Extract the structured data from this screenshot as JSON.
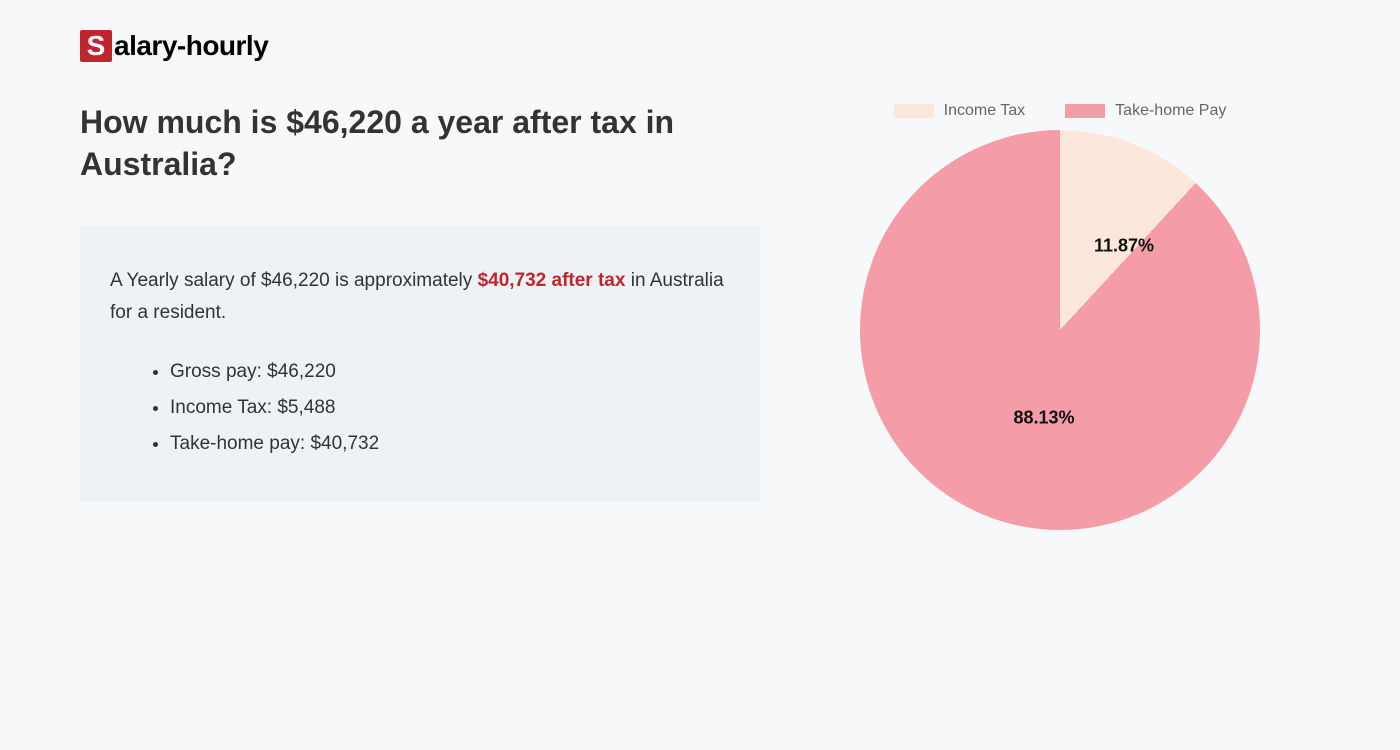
{
  "logo": {
    "s": "S",
    "rest": "alary-hourly"
  },
  "heading": "How much is $46,220 a year after tax in Australia?",
  "summary": {
    "prefix": "A Yearly salary of $46,220 is approximately ",
    "highlight": "$40,732 after tax",
    "suffix": " in Australia for a resident.",
    "items": [
      "Gross pay: $46,220",
      "Income Tax: $5,488",
      "Take-home pay: $40,732"
    ]
  },
  "chart": {
    "type": "pie",
    "legend": [
      {
        "label": "Income Tax",
        "color": "#fce7dc"
      },
      {
        "label": "Take-home Pay",
        "color": "#f49ca8"
      }
    ],
    "slices": [
      {
        "label": "11.87%",
        "value": 11.87,
        "color": "#fce7dc",
        "label_left_pct": 66,
        "label_top_pct": 29
      },
      {
        "label": "88.13%",
        "value": 88.13,
        "color": "#f49ca8",
        "label_left_pct": 46,
        "label_top_pct": 72
      }
    ],
    "background_color": "#f7f8fa",
    "label_fontsize": 18,
    "label_fontweight": 700,
    "label_color": "#111111",
    "legend_font_color": "#666666",
    "legend_fontsize": 16
  }
}
